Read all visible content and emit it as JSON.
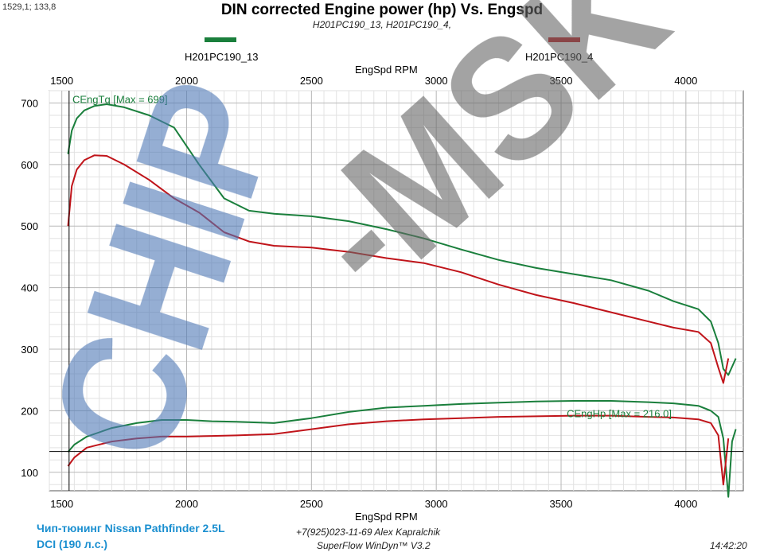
{
  "header": {
    "coord_readout": "1529,1; 133,8",
    "title": "DIN corrected Engine power (hp) Vs. Engspd",
    "subtitle": "H201PC190_13, H201PC190_4,"
  },
  "legend": [
    {
      "label": "H201PC190_13",
      "color": "#1a7f3c"
    },
    {
      "label": "H201PC190_4",
      "color": "#c0141a"
    }
  ],
  "watermark": "CHIP-MSK",
  "footer": {
    "brand_line1": "Чип-тюнинг Nissan Pathfinder 2.5L",
    "brand_line2": "DCI (190 л.с.)",
    "contact": "+7(925)023-11-69 Alex Kapralchik",
    "software": "SuperFlow WinDyn™ V3.2",
    "time": "14:42:20"
  },
  "chart_data": {
    "type": "line",
    "title": "DIN corrected Engine power (hp) Vs. Engspd",
    "xlabel": "EngSpd RPM",
    "xlabel_top": "EngSpd RPM",
    "xlim": [
      1450,
      4230
    ],
    "ylim": [
      70,
      720
    ],
    "x_ticks": [
      1500,
      2000,
      2500,
      3000,
      3500,
      4000
    ],
    "y_ticks": [
      100,
      200,
      300,
      400,
      500,
      600,
      700
    ],
    "grid": true,
    "cursor": {
      "x": 1529.1,
      "y": 133.8
    },
    "annotations": [
      {
        "text": "CEngTq [Max = 699]",
        "x": 1670,
        "y": 705,
        "color": "#1a7f3c"
      },
      {
        "text": "CEngHp [Max = 216.0]",
        "x": 3650,
        "y": 195,
        "color": "#1a7f3c"
      }
    ],
    "series": [
      {
        "name": "H201PC190_13",
        "measure": "CEngTq",
        "color": "#1a7f3c",
        "x": [
          1525,
          1540,
          1560,
          1590,
          1630,
          1680,
          1750,
          1850,
          1950,
          2050,
          2150,
          2250,
          2350,
          2500,
          2650,
          2800,
          2950,
          3100,
          3250,
          3400,
          3550,
          3700,
          3850,
          3950,
          4050,
          4100,
          4130,
          4150,
          4170,
          4200
        ],
        "values": [
          617,
          655,
          675,
          688,
          695,
          698,
          693,
          680,
          660,
          600,
          545,
          525,
          520,
          516,
          508,
          495,
          480,
          462,
          445,
          432,
          422,
          412,
          395,
          378,
          365,
          345,
          310,
          268,
          258,
          285
        ]
      },
      {
        "name": "H201PC190_4",
        "measure": "CEngTq",
        "color": "#c0141a",
        "x": [
          1525,
          1540,
          1560,
          1590,
          1630,
          1680,
          1750,
          1850,
          1950,
          2050,
          2150,
          2250,
          2350,
          2500,
          2650,
          2800,
          2950,
          3100,
          3250,
          3400,
          3550,
          3700,
          3850,
          3950,
          4050,
          4100,
          4130,
          4150,
          4170
        ],
        "values": [
          500,
          565,
          592,
          607,
          615,
          614,
          600,
          575,
          545,
          522,
          490,
          475,
          468,
          465,
          458,
          448,
          440,
          425,
          405,
          388,
          375,
          360,
          345,
          335,
          328,
          310,
          270,
          245,
          285
        ]
      },
      {
        "name": "H201PC190_13",
        "measure": "CEngHp",
        "color": "#1a7f3c",
        "x": [
          1525,
          1550,
          1600,
          1700,
          1800,
          1900,
          2000,
          2100,
          2200,
          2350,
          2500,
          2650,
          2800,
          2950,
          3100,
          3250,
          3400,
          3550,
          3700,
          3850,
          3950,
          4050,
          4100,
          4130,
          4150,
          4170,
          4185,
          4200
        ],
        "values": [
          133,
          145,
          158,
          172,
          180,
          185,
          185,
          183,
          182,
          180,
          188,
          198,
          205,
          208,
          211,
          213,
          215,
          216,
          216,
          214,
          212,
          208,
          200,
          190,
          155,
          60,
          150,
          170
        ]
      },
      {
        "name": "H201PC190_4",
        "measure": "CEngHp",
        "color": "#c0141a",
        "x": [
          1525,
          1550,
          1600,
          1700,
          1800,
          1900,
          2000,
          2100,
          2200,
          2350,
          2500,
          2650,
          2800,
          2950,
          3100,
          3250,
          3400,
          3550,
          3700,
          3850,
          3950,
          4050,
          4100,
          4130,
          4150,
          4170
        ],
        "values": [
          110,
          124,
          140,
          150,
          155,
          158,
          158,
          159,
          160,
          162,
          170,
          178,
          183,
          186,
          188,
          190,
          191,
          192,
          192,
          190,
          189,
          186,
          180,
          160,
          80,
          155
        ]
      }
    ]
  }
}
